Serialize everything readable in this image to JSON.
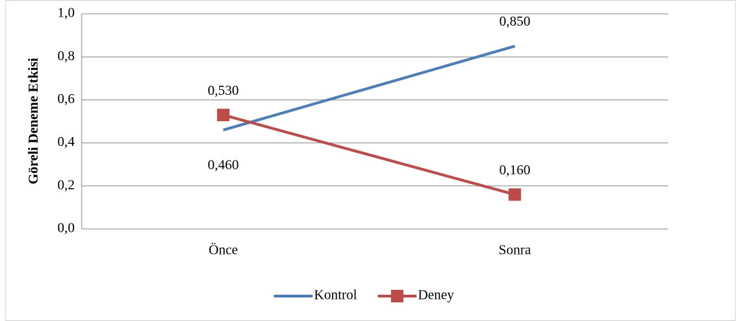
{
  "chart_data": {
    "type": "line",
    "y_label": "Göreli Deneme Etkisi",
    "categories": [
      "Önce",
      "Sonra"
    ],
    "series": [
      {
        "name": "Kontrol",
        "color": "#4a7ebb",
        "values": [
          0.46,
          0.85
        ],
        "value_labels": [
          "0,460",
          "0,850"
        ],
        "marker": "none"
      },
      {
        "name": "Deney",
        "color": "#be4b48",
        "values": [
          0.53,
          0.16
        ],
        "value_labels": [
          "0,530",
          "0,160"
        ],
        "marker": "square"
      }
    ],
    "ylim": [
      0,
      1
    ],
    "yticks": [
      {
        "value": 0,
        "label": "0,0"
      },
      {
        "value": 0.2,
        "label": "0,2"
      },
      {
        "value": 0.4,
        "label": "0,4"
      },
      {
        "value": 0.6,
        "label": "0,6"
      },
      {
        "value": 0.8,
        "label": "0,8"
      },
      {
        "value": 1,
        "label": "1,0"
      }
    ],
    "grid": true,
    "legend": "bottom"
  }
}
